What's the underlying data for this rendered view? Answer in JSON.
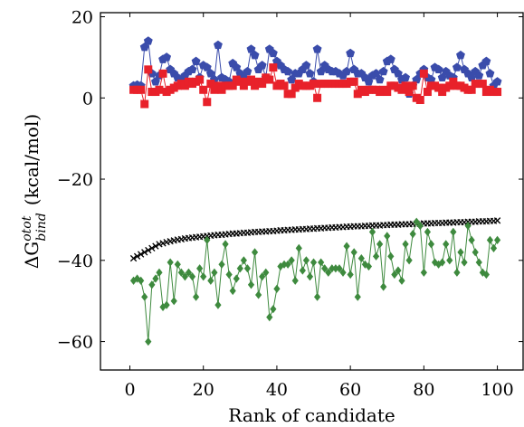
{
  "chart_data": {
    "type": "scatter",
    "title": "",
    "xlabel": "Rank of candidate",
    "ylabel_parts": {
      "delta": "ΔG",
      "sup": "otot",
      "sub": "bind",
      "units": "(kcal/mol)"
    },
    "xlim": [
      -8,
      107
    ],
    "ylim": [
      -67,
      21
    ],
    "xticks": [
      0,
      20,
      40,
      60,
      80,
      100
    ],
    "xtick_labels": [
      "0",
      "20",
      "40",
      "60",
      "80",
      "100"
    ],
    "yticks": [
      20,
      0,
      -20,
      -40,
      -60
    ],
    "ytick_labels": [
      "20",
      "0",
      "−20",
      "−40",
      "−60"
    ],
    "grid": false,
    "legend": "none",
    "series": [
      {
        "marker": "pentagon",
        "color": "#3a4cab",
        "line": true,
        "x": [
          1,
          2,
          3,
          4,
          5,
          6,
          7,
          8,
          9,
          10,
          11,
          12,
          13,
          14,
          15,
          16,
          17,
          18,
          19,
          20,
          21,
          22,
          23,
          24,
          25,
          26,
          27,
          28,
          29,
          30,
          31,
          32,
          33,
          34,
          35,
          36,
          37,
          38,
          39,
          40,
          41,
          42,
          43,
          44,
          45,
          46,
          47,
          48,
          49,
          50,
          51,
          52,
          53,
          54,
          55,
          56,
          57,
          58,
          59,
          60,
          61,
          62,
          63,
          64,
          65,
          66,
          67,
          68,
          69,
          70,
          71,
          72,
          73,
          74,
          75,
          76,
          77,
          78,
          79,
          80,
          81,
          82,
          83,
          84,
          85,
          86,
          87,
          88,
          89,
          90,
          91,
          92,
          93,
          94,
          95,
          96,
          97,
          98,
          99,
          100
        ],
        "y": [
          3,
          3.2,
          3,
          12.5,
          14,
          6,
          4,
          5.5,
          9.5,
          10,
          7,
          6,
          5,
          4.5,
          5.5,
          6.5,
          7,
          9,
          5,
          8,
          7.5,
          6,
          4.5,
          13,
          5,
          4.5,
          4,
          8.5,
          7.5,
          6,
          5,
          6.5,
          12,
          10.5,
          7,
          8,
          5,
          12,
          11,
          9,
          8,
          7,
          6.5,
          4.5,
          6,
          6,
          7,
          8,
          6,
          4,
          12,
          6.5,
          8,
          7,
          6.5,
          6.5,
          6,
          5.5,
          6.5,
          11,
          7,
          6,
          6,
          5,
          4,
          5.5,
          6,
          4.5,
          6.5,
          9,
          9.5,
          7,
          6,
          4.5,
          5,
          1,
          3,
          4.5,
          6,
          7,
          5,
          4.5,
          7.5,
          7,
          5,
          6.5,
          5.5,
          5,
          7.5,
          10.5,
          7,
          6,
          5,
          6.5,
          5.5,
          8,
          9,
          6,
          3,
          4
        ]
      },
      {
        "marker": "square",
        "color": "#e8212a",
        "line": true,
        "x": [
          1,
          2,
          3,
          4,
          5,
          6,
          7,
          8,
          9,
          10,
          11,
          12,
          13,
          14,
          15,
          16,
          17,
          18,
          19,
          20,
          21,
          22,
          23,
          24,
          25,
          26,
          27,
          28,
          29,
          30,
          31,
          32,
          33,
          34,
          35,
          36,
          37,
          38,
          39,
          40,
          41,
          42,
          43,
          44,
          45,
          46,
          47,
          48,
          49,
          50,
          51,
          52,
          53,
          54,
          55,
          56,
          57,
          58,
          59,
          60,
          61,
          62,
          63,
          64,
          65,
          66,
          67,
          68,
          69,
          70,
          71,
          72,
          73,
          74,
          75,
          76,
          77,
          78,
          79,
          80,
          81,
          82,
          83,
          84,
          85,
          86,
          87,
          88,
          89,
          90,
          91,
          92,
          93,
          94,
          95,
          96,
          97,
          98,
          99,
          100
        ],
        "y": [
          2,
          2,
          2,
          -1.5,
          7,
          1.5,
          1.5,
          2,
          6,
          1.5,
          2,
          2.5,
          3,
          3.5,
          3,
          4,
          3.5,
          4,
          4.5,
          2,
          -1,
          3.5,
          2,
          3,
          2,
          3,
          3,
          3,
          4.5,
          4,
          3,
          4,
          4.5,
          3,
          4,
          3.5,
          5,
          4.5,
          7.5,
          3,
          3.5,
          3,
          1,
          1,
          2.5,
          3.5,
          3,
          3,
          3,
          3.5,
          0,
          3.5,
          3.5,
          3.5,
          3.5,
          3.5,
          3.5,
          3.5,
          3.5,
          4,
          4,
          1,
          2,
          1.5,
          2,
          2,
          2,
          1.5,
          2,
          1.5,
          3,
          3,
          2.5,
          2,
          3,
          1.5,
          3,
          0,
          -0.5,
          6,
          1.5,
          3,
          3,
          2.5,
          1.5,
          2.5,
          3,
          4,
          3,
          3,
          2.5,
          2,
          2,
          3.5,
          3.5,
          3.5,
          1.5,
          2,
          1.5,
          1.5
        ]
      },
      {
        "marker": "cross",
        "color": "#000000",
        "line": false,
        "x": [
          1,
          2,
          3,
          4,
          5,
          6,
          7,
          8,
          9,
          10,
          11,
          12,
          13,
          14,
          15,
          16,
          17,
          18,
          19,
          20,
          21,
          22,
          23,
          24,
          25,
          26,
          27,
          28,
          29,
          30,
          31,
          32,
          33,
          34,
          35,
          36,
          37,
          38,
          39,
          40,
          41,
          42,
          43,
          44,
          45,
          46,
          47,
          48,
          49,
          50,
          51,
          52,
          53,
          54,
          55,
          56,
          57,
          58,
          59,
          60,
          61,
          62,
          63,
          64,
          65,
          66,
          67,
          68,
          69,
          70,
          71,
          72,
          73,
          74,
          75,
          76,
          77,
          78,
          79,
          80,
          81,
          82,
          83,
          84,
          85,
          86,
          87,
          88,
          89,
          90,
          91,
          92,
          93,
          94,
          95,
          96,
          97,
          98,
          99,
          100
        ],
        "y": [
          -39.5,
          -39,
          -38.5,
          -38,
          -37.5,
          -37,
          -36.5,
          -36,
          -35.8,
          -35.5,
          -35.3,
          -35.1,
          -34.9,
          -34.8,
          -34.6,
          -34.5,
          -34.4,
          -34.3,
          -34.2,
          -34.1,
          -34,
          -33.9,
          -33.8,
          -33.7,
          -33.7,
          -33.6,
          -33.5,
          -33.4,
          -33.4,
          -33.3,
          -33.2,
          -33.2,
          -33.1,
          -33,
          -33,
          -32.9,
          -32.9,
          -32.8,
          -32.8,
          -32.7,
          -32.6,
          -32.6,
          -32.5,
          -32.5,
          -32.4,
          -32.4,
          -32.3,
          -32.3,
          -32.2,
          -32.2,
          -32.1,
          -32.1,
          -32,
          -32,
          -31.9,
          -31.9,
          -31.8,
          -31.8,
          -31.7,
          -31.7,
          -31.6,
          -31.6,
          -31.6,
          -31.5,
          -31.5,
          -31.4,
          -31.4,
          -31.4,
          -31.3,
          -31.3,
          -31.2,
          -31.2,
          -31.2,
          -31.1,
          -31.1,
          -31.1,
          -31,
          -31,
          -31,
          -30.9,
          -30.9,
          -30.9,
          -30.8,
          -30.8,
          -30.8,
          -30.7,
          -30.7,
          -30.7,
          -30.6,
          -30.6,
          -30.6,
          -30.5,
          -30.5,
          -30.5,
          -30.4,
          -30.4,
          -30.4,
          -30.3,
          -30.3,
          -30.2
        ]
      },
      {
        "marker": "diamond",
        "color": "#3e8a3e",
        "line": true,
        "x": [
          1,
          2,
          3,
          4,
          5,
          6,
          7,
          8,
          9,
          10,
          11,
          12,
          13,
          14,
          15,
          16,
          17,
          18,
          19,
          20,
          21,
          22,
          23,
          24,
          25,
          26,
          27,
          28,
          29,
          30,
          31,
          32,
          33,
          34,
          35,
          36,
          37,
          38,
          39,
          40,
          41,
          42,
          43,
          44,
          45,
          46,
          47,
          48,
          49,
          50,
          51,
          52,
          53,
          54,
          55,
          56,
          57,
          58,
          59,
          60,
          61,
          62,
          63,
          64,
          65,
          66,
          67,
          68,
          69,
          70,
          71,
          72,
          73,
          74,
          75,
          76,
          77,
          78,
          79,
          80,
          81,
          82,
          83,
          84,
          85,
          86,
          87,
          88,
          89,
          90,
          91,
          92,
          93,
          94,
          95,
          96,
          97,
          98,
          99,
          100
        ],
        "y": [
          -45,
          -44.5,
          -45,
          -49,
          -60,
          -46,
          -44.5,
          -43,
          -51.5,
          -51,
          -40.5,
          -50,
          -41,
          -43,
          -44,
          -43,
          -44,
          -49,
          -42,
          -44,
          -35,
          -45,
          -43,
          -51,
          -41,
          -36,
          -43.5,
          -47.5,
          -44.5,
          -42,
          -40,
          -42,
          -46,
          -38,
          -48.5,
          -44,
          -43,
          -54,
          -52,
          -47,
          -41.5,
          -41,
          -41,
          -40,
          -45,
          -37,
          -42.5,
          -40,
          -44,
          -40.5,
          -49,
          -40.5,
          -42,
          -43,
          -42,
          -42,
          -42,
          -43,
          -36.5,
          -43.5,
          -38,
          -49,
          -39.5,
          -41,
          -41.5,
          -33,
          -39,
          -36,
          -46.5,
          -34,
          -39,
          -43.5,
          -42.5,
          -45,
          -36,
          -40,
          -33.5,
          -30.5,
          -31.5,
          -43,
          -33,
          -36,
          -40.5,
          -41,
          -40.5,
          -36,
          -40,
          -33,
          -43,
          -38,
          -40.5,
          -31.5,
          -35,
          -38,
          -40.5,
          -43,
          -43.5,
          -35,
          -37,
          -35
        ]
      }
    ]
  }
}
